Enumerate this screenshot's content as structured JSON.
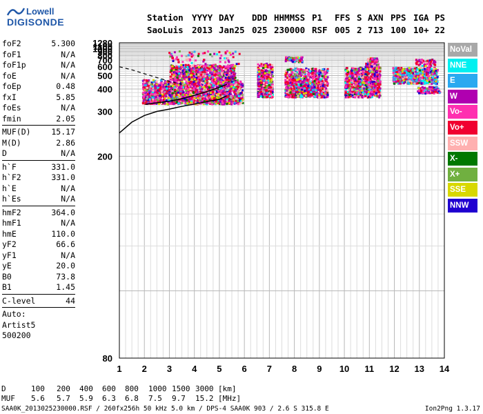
{
  "logo": {
    "line1": "Lowell",
    "line2": "DIGISONDE"
  },
  "header": {
    "labels": [
      "Station",
      "YYYY",
      "DAY",
      "DDD",
      "HHMMSS",
      "P1",
      "FFS",
      "S",
      "AXN",
      "PPS",
      "IGA",
      "PS"
    ],
    "values": [
      "SaoLuis",
      "2013",
      "Jan25",
      "025",
      "230000",
      "RSF",
      "005",
      "2",
      "713",
      "100",
      "10+",
      "22"
    ]
  },
  "params": {
    "group1": [
      {
        "k": "foF2",
        "v": "5.300"
      },
      {
        "k": "foF1",
        "v": "N/A"
      },
      {
        "k": "foF1p",
        "v": "N/A"
      },
      {
        "k": "foE",
        "v": "N/A"
      },
      {
        "k": "foEp",
        "v": "0.48"
      },
      {
        "k": "fxI",
        "v": "5.85"
      },
      {
        "k": "foEs",
        "v": "N/A"
      },
      {
        "k": "fmin",
        "v": "2.05"
      }
    ],
    "group2": [
      {
        "k": "MUF(D)",
        "v": "15.17"
      },
      {
        "k": "M(D)",
        "v": "2.86"
      },
      {
        "k": "D",
        "v": "N/A"
      }
    ],
    "group3": [
      {
        "k": "h`F",
        "v": "331.0"
      },
      {
        "k": "h`F2",
        "v": "331.0"
      },
      {
        "k": "h`E",
        "v": "N/A"
      },
      {
        "k": "h`Es",
        "v": "N/A"
      }
    ],
    "group4": [
      {
        "k": "hmF2",
        "v": "364.0"
      },
      {
        "k": "hmF1",
        "v": "N/A"
      },
      {
        "k": "hmE",
        "v": "110.0"
      },
      {
        "k": "yF2",
        "v": "66.6"
      },
      {
        "k": "yF1",
        "v": "N/A"
      },
      {
        "k": "yE",
        "v": "20.0"
      },
      {
        "k": "B0",
        "v": "73.8"
      },
      {
        "k": "B1",
        "v": "1.45"
      }
    ],
    "clevel": {
      "k": "C-level",
      "v": "44"
    },
    "notes": [
      "Auto:",
      "Artist5",
      "500200"
    ]
  },
  "legend": [
    {
      "label": "NoVal",
      "color": "#a8a8a8"
    },
    {
      "label": "NNE",
      "color": "#00f0f0"
    },
    {
      "label": "E",
      "color": "#2aa9f0"
    },
    {
      "label": "W",
      "color": "#b000b0"
    },
    {
      "label": "Vo-",
      "color": "#ff30b0"
    },
    {
      "label": "Vo+",
      "color": "#f00030"
    },
    {
      "label": "SSW",
      "color": "#ffb0b0"
    },
    {
      "label": "X-",
      "color": "#007800"
    },
    {
      "label": "X+",
      "color": "#70b040"
    },
    {
      "label": "SSE",
      "color": "#d8d800"
    },
    {
      "label": "NNW",
      "color": "#2000d0"
    }
  ],
  "footer": {
    "d_row": {
      "label": "D",
      "values": [
        "100",
        "200",
        "400",
        "600",
        "800",
        "1000",
        "1500",
        "3000"
      ],
      "unit": "[km]"
    },
    "muf_row": {
      "label": "MUF",
      "values": [
        "5.6",
        "5.7",
        "5.9",
        "6.3",
        "6.8",
        "7.5",
        "9.7",
        "15.2"
      ],
      "unit": "[MHz]"
    },
    "file_line": "SAA0K_2013025230000.RSF / 260fx256h 50 kHz 5.0 km / DPS-4 SAA0K 903 / 2.6 S 315.8 E",
    "version": "Ion2Png 1.3.17"
  },
  "chart_data": {
    "type": "scatter",
    "xlim": [
      1,
      14
    ],
    "ylim": [
      80,
      1280
    ],
    "x_ticks": [
      "1",
      "2",
      "3",
      "4",
      "5",
      "6",
      "7",
      "8",
      "9",
      "10",
      "11",
      "12",
      "13",
      "14"
    ],
    "y_ticks": [
      "1280",
      "1100",
      "1000",
      "900",
      "800",
      "700",
      "600",
      "500",
      "400",
      "300",
      "200",
      "80"
    ],
    "y_scale": "reciprocal",
    "grid": true,
    "clusters": [
      {
        "f": [
          1.9,
          5.9
        ],
        "h": [
          330,
          470
        ]
      },
      {
        "f": [
          3.0,
          5.6
        ],
        "h": [
          470,
          640
        ]
      },
      {
        "f": [
          6.5,
          7.1
        ],
        "h": [
          360,
          660
        ]
      },
      {
        "f": [
          7.6,
          8.9
        ],
        "h": [
          360,
          590
        ]
      },
      {
        "f": [
          8.9,
          9.3
        ],
        "h": [
          360,
          590
        ]
      },
      {
        "f": [
          10.0,
          10.8
        ],
        "h": [
          360,
          600
        ]
      },
      {
        "f": [
          10.8,
          11.4
        ],
        "h": [
          360,
          680
        ]
      },
      {
        "f": [
          11.9,
          13.7
        ],
        "h": [
          440,
          600
        ]
      },
      {
        "f": [
          12.9,
          13.8
        ],
        "h": [
          380,
          420
        ]
      }
    ],
    "trace_virtual": [
      [
        2.05,
        326
      ],
      [
        2.5,
        332
      ],
      [
        3.0,
        339
      ],
      [
        3.5,
        350
      ],
      [
        4.0,
        366
      ],
      [
        4.5,
        385
      ],
      [
        5.0,
        410
      ],
      [
        5.3,
        430
      ]
    ],
    "trace_profile": [
      [
        1.0,
        242
      ],
      [
        1.5,
        268
      ],
      [
        2.0,
        287
      ],
      [
        2.5,
        300
      ],
      [
        3.0,
        308
      ],
      [
        3.5,
        318
      ],
      [
        4.0,
        327
      ],
      [
        4.5,
        337
      ],
      [
        5.0,
        347
      ],
      [
        5.3,
        364
      ]
    ],
    "trace_dashed": [
      [
        1.0,
        598
      ],
      [
        1.5,
        560
      ],
      [
        2.0,
        518
      ],
      [
        2.5,
        482
      ],
      [
        3.0,
        452
      ],
      [
        3.5,
        430
      ]
    ]
  }
}
